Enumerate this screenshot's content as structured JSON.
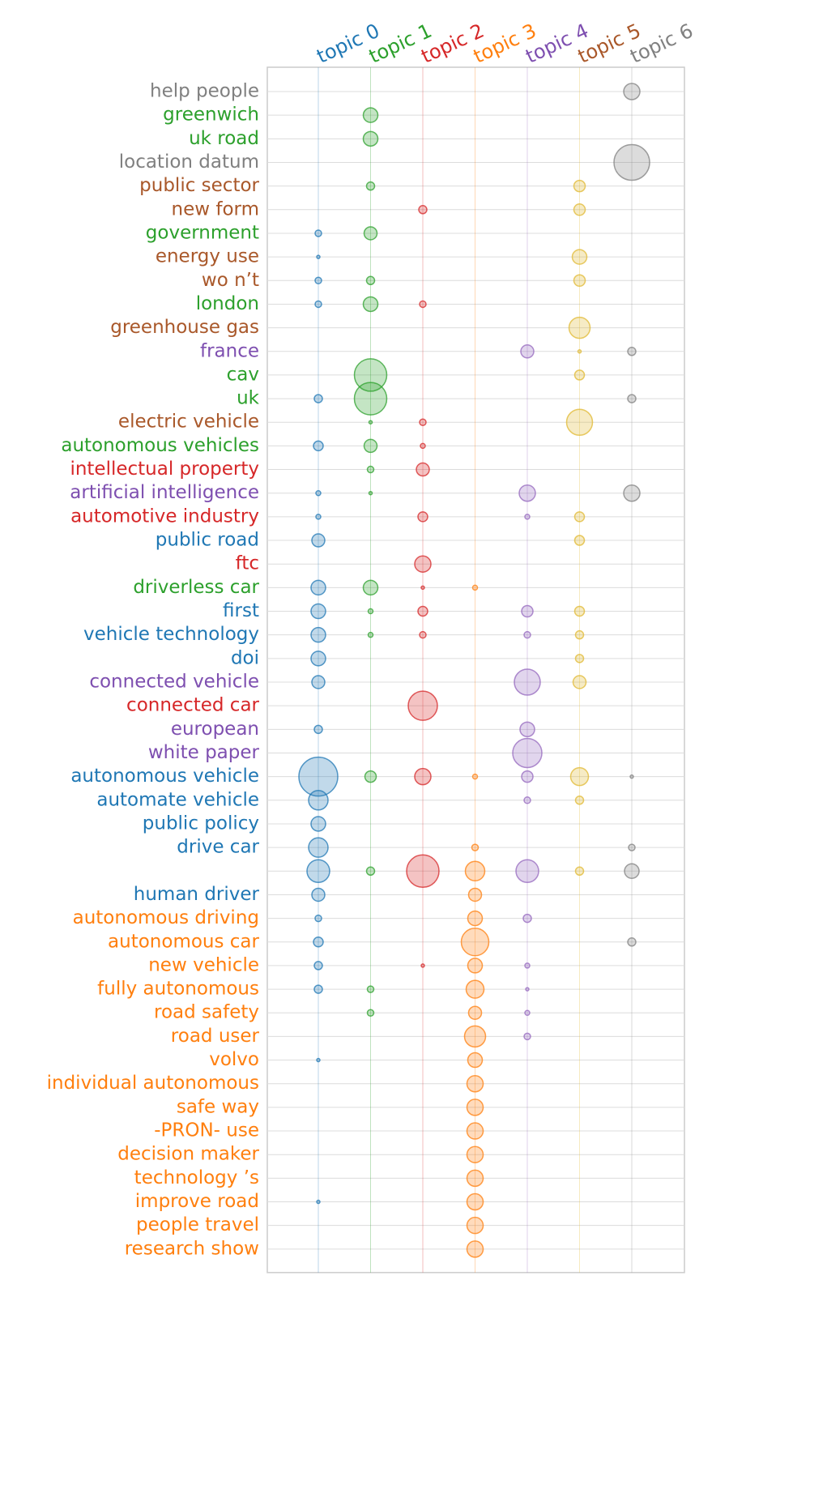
{
  "chart_data": {
    "type": "bubble_matrix",
    "categories": [
      "help people",
      "greenwich",
      "uk road",
      "location datum",
      "public sector",
      "new form",
      "government",
      "energy use",
      "wo n’t",
      "london",
      "greenhouse gas",
      "france",
      "cav",
      "uk",
      "electric vehicle",
      "autonomous vehicles",
      "intellectual property",
      "artificial intelligence",
      "automotive industry",
      "public road",
      "ftc",
      "driverless car",
      "first",
      "vehicle technology",
      "doi",
      "connected vehicle",
      "connected car",
      "european",
      "white paper",
      "autonomous vehicle",
      "automate vehicle",
      "public policy",
      "drive car",
      null,
      "human driver",
      "autonomous driving",
      "autonomous car",
      "new vehicle",
      "fully autonomous",
      "road safety",
      "road user",
      "volvo",
      "individual autonomous",
      "safe way",
      "-PRON- use",
      "decision maker",
      "technology ’s",
      "improve road",
      "people travel",
      "research show"
    ],
    "category_topics": [
      6,
      1,
      1,
      6,
      5,
      5,
      1,
      5,
      5,
      1,
      5,
      4,
      1,
      1,
      5,
      1,
      2,
      4,
      2,
      0,
      2,
      1,
      0,
      0,
      0,
      4,
      2,
      4,
      4,
      0,
      0,
      0,
      0,
      null,
      0,
      3,
      3,
      3,
      3,
      3,
      3,
      3,
      3,
      3,
      3,
      3,
      3,
      3,
      3,
      3
    ],
    "series": [
      {
        "name": "topic 0",
        "color": "#1f77b4",
        "values": [
          null,
          null,
          null,
          null,
          null,
          null,
          16,
          4,
          16,
          16,
          null,
          null,
          null,
          25,
          null,
          36,
          null,
          9,
          9,
          64,
          null,
          81,
          81,
          81,
          81,
          64,
          null,
          25,
          null,
          576,
          144,
          81,
          144,
          196,
          64,
          16,
          36,
          25,
          25,
          null,
          null,
          4,
          null,
          null,
          null,
          null,
          null,
          4,
          null,
          null
        ]
      },
      {
        "name": "topic 1",
        "color": "#2ca02c",
        "values": [
          null,
          81,
          81,
          null,
          25,
          null,
          64,
          null,
          25,
          81,
          null,
          null,
          400,
          400,
          4,
          64,
          16,
          4,
          null,
          null,
          null,
          81,
          9,
          9,
          null,
          null,
          null,
          null,
          null,
          49,
          null,
          null,
          null,
          25,
          null,
          null,
          null,
          null,
          16,
          16,
          null,
          null,
          null,
          null,
          null,
          null,
          null,
          null,
          null,
          null
        ]
      },
      {
        "name": "topic 2",
        "color": "#d62728",
        "values": [
          null,
          null,
          null,
          null,
          null,
          25,
          null,
          null,
          null,
          16,
          null,
          null,
          null,
          null,
          16,
          9,
          64,
          null,
          36,
          null,
          100,
          4,
          36,
          16,
          null,
          null,
          324,
          null,
          null,
          100,
          null,
          null,
          null,
          400,
          null,
          null,
          null,
          4,
          null,
          null,
          null,
          null,
          null,
          null,
          null,
          null,
          null,
          null,
          null,
          null
        ]
      },
      {
        "name": "topic 3",
        "color": "#ff7f0e",
        "values": [
          null,
          null,
          null,
          null,
          null,
          null,
          null,
          null,
          null,
          null,
          null,
          null,
          null,
          null,
          null,
          null,
          null,
          null,
          null,
          null,
          null,
          9,
          null,
          null,
          null,
          null,
          null,
          null,
          null,
          9,
          null,
          null,
          16,
          144,
          64,
          81,
          289,
          81,
          121,
          64,
          169,
          81,
          100,
          100,
          100,
          100,
          100,
          100,
          100,
          100
        ]
      },
      {
        "name": "topic 4",
        "color": "#7e4fb0",
        "marker_color": "#9467bd",
        "values": [
          null,
          null,
          null,
          null,
          null,
          null,
          null,
          null,
          null,
          null,
          null,
          64,
          null,
          null,
          null,
          null,
          null,
          100,
          9,
          null,
          null,
          null,
          49,
          16,
          null,
          256,
          null,
          81,
          324,
          49,
          16,
          null,
          null,
          196,
          null,
          25,
          null,
          9,
          4,
          9,
          16,
          null,
          null,
          null,
          null,
          null,
          null,
          null,
          null,
          null
        ]
      },
      {
        "name": "topic 5",
        "color": "#a9582a",
        "marker_color": "#e0b830",
        "values": [
          null,
          null,
          null,
          null,
          49,
          49,
          null,
          81,
          49,
          null,
          169,
          4,
          36,
          null,
          256,
          null,
          null,
          null,
          36,
          36,
          null,
          null,
          36,
          25,
          25,
          64,
          null,
          null,
          null,
          121,
          25,
          null,
          null,
          25,
          null,
          null,
          null,
          null,
          null,
          null,
          null,
          null,
          null,
          null,
          null,
          null,
          null,
          null,
          null,
          null
        ]
      },
      {
        "name": "topic 6",
        "color": "#808080",
        "values": [
          100,
          null,
          null,
          484,
          null,
          null,
          null,
          null,
          null,
          null,
          null,
          25,
          null,
          25,
          null,
          null,
          null,
          100,
          null,
          null,
          null,
          null,
          null,
          null,
          null,
          null,
          null,
          null,
          null,
          4,
          null,
          null,
          16,
          81,
          null,
          null,
          25,
          null,
          null,
          null,
          null,
          null,
          null,
          null,
          null,
          null,
          null,
          null,
          null,
          null
        ]
      }
    ],
    "grid": true
  }
}
